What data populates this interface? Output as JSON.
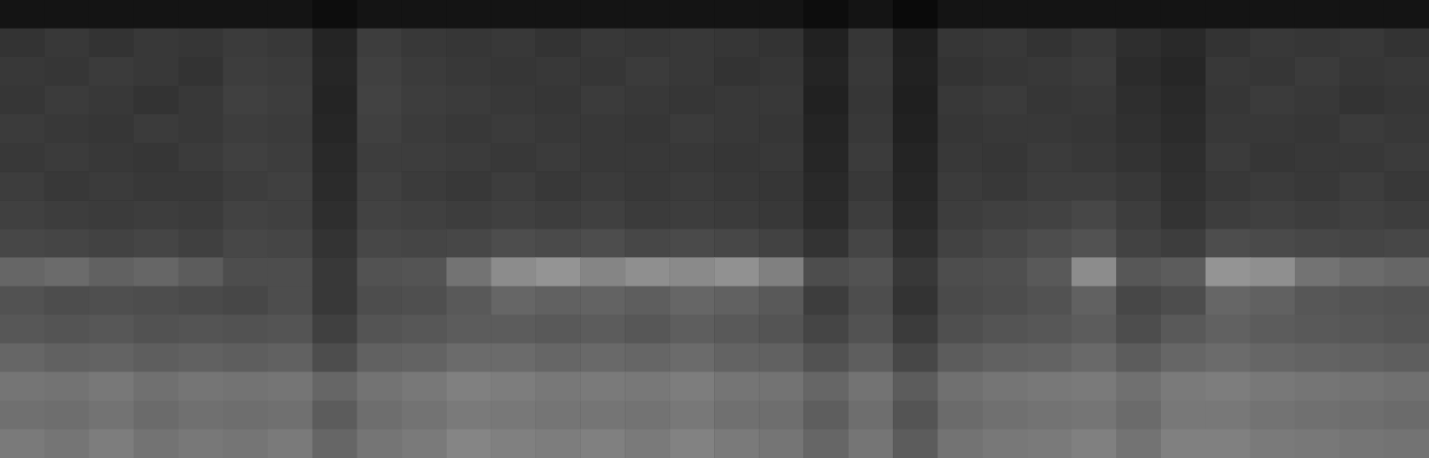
{
  "chart_data": {
    "type": "heatmap",
    "tick_labels": false,
    "grid": false,
    "color_range": [
      0,
      100
    ],
    "cells": [
      [
        8,
        8,
        8,
        8,
        8,
        8,
        8,
        5,
        8,
        8,
        8,
        8,
        8,
        8,
        8,
        8,
        8,
        8,
        5,
        8,
        4,
        8,
        8,
        8,
        8,
        8,
        8,
        8,
        8,
        8,
        8,
        8
      ],
      [
        20,
        22,
        20,
        22,
        21,
        23,
        22,
        14,
        24,
        22,
        21,
        22,
        20,
        22,
        21,
        22,
        21,
        20,
        13,
        21,
        12,
        21,
        22,
        20,
        22,
        18,
        16,
        20,
        22,
        21,
        22,
        20
      ],
      [
        22,
        21,
        23,
        22,
        20,
        24,
        23,
        15,
        25,
        23,
        22,
        21,
        22,
        21,
        23,
        22,
        20,
        21,
        14,
        22,
        13,
        20,
        21,
        22,
        23,
        17,
        15,
        22,
        21,
        23,
        21,
        22
      ],
      [
        21,
        23,
        22,
        20,
        22,
        25,
        24,
        14,
        26,
        24,
        23,
        22,
        21,
        23,
        22,
        21,
        22,
        22,
        13,
        21,
        12,
        22,
        23,
        21,
        22,
        18,
        16,
        21,
        23,
        22,
        20,
        21
      ],
      [
        23,
        22,
        21,
        23,
        22,
        24,
        23,
        15,
        25,
        23,
        22,
        23,
        22,
        22,
        21,
        23,
        22,
        21,
        14,
        22,
        13,
        21,
        22,
        22,
        21,
        19,
        17,
        22,
        22,
        21,
        23,
        22
      ],
      [
        22,
        23,
        22,
        21,
        23,
        25,
        24,
        16,
        24,
        24,
        23,
        22,
        23,
        22,
        22,
        22,
        21,
        22,
        15,
        23,
        14,
        22,
        21,
        23,
        22,
        20,
        18,
        23,
        21,
        22,
        22,
        23
      ],
      [
        24,
        22,
        23,
        22,
        22,
        24,
        25,
        17,
        25,
        23,
        22,
        24,
        22,
        23,
        22,
        23,
        22,
        21,
        16,
        22,
        15,
        23,
        22,
        24,
        24,
        22,
        19,
        22,
        23,
        22,
        24,
        22
      ],
      [
        25,
        24,
        23,
        24,
        23,
        26,
        25,
        18,
        26,
        25,
        24,
        25,
        24,
        25,
        23,
        24,
        23,
        22,
        17,
        24,
        16,
        24,
        25,
        26,
        28,
        24,
        20,
        24,
        25,
        24,
        25,
        24
      ],
      [
        28,
        27,
        26,
        27,
        25,
        28,
        27,
        20,
        28,
        27,
        28,
        30,
        29,
        30,
        28,
        29,
        28,
        26,
        20,
        27,
        18,
        26,
        28,
        30,
        32,
        26,
        24,
        30,
        29,
        28,
        27,
        28
      ],
      [
        40,
        42,
        38,
        40,
        36,
        30,
        30,
        22,
        32,
        33,
        45,
        55,
        58,
        52,
        56,
        54,
        57,
        50,
        30,
        32,
        22,
        30,
        31,
        35,
        55,
        34,
        36,
        58,
        56,
        45,
        42,
        40
      ],
      [
        32,
        30,
        31,
        30,
        29,
        28,
        30,
        22,
        30,
        31,
        35,
        40,
        38,
        39,
        37,
        40,
        38,
        35,
        24,
        30,
        20,
        29,
        30,
        32,
        38,
        28,
        30,
        40,
        38,
        34,
        33,
        32
      ],
      [
        34,
        33,
        34,
        32,
        33,
        32,
        33,
        25,
        33,
        34,
        36,
        36,
        35,
        36,
        34,
        37,
        35,
        33,
        27,
        32,
        23,
        31,
        33,
        34,
        36,
        30,
        35,
        38,
        36,
        35,
        34,
        33
      ],
      [
        40,
        38,
        39,
        37,
        38,
        37,
        38,
        30,
        38,
        39,
        42,
        42,
        40,
        41,
        40,
        42,
        39,
        38,
        32,
        37,
        28,
        36,
        38,
        39,
        41,
        36,
        40,
        42,
        40,
        39,
        38,
        37
      ],
      [
        46,
        45,
        47,
        44,
        46,
        45,
        46,
        40,
        45,
        47,
        50,
        49,
        47,
        48,
        47,
        49,
        46,
        45,
        40,
        45,
        36,
        44,
        46,
        47,
        48,
        44,
        48,
        49,
        47,
        46,
        45,
        44
      ],
      [
        44,
        43,
        45,
        42,
        44,
        43,
        44,
        36,
        43,
        45,
        48,
        47,
        46,
        46,
        45,
        47,
        44,
        43,
        37,
        43,
        33,
        42,
        44,
        45,
        46,
        42,
        47,
        47,
        45,
        44,
        43,
        42
      ],
      [
        48,
        46,
        49,
        45,
        47,
        46,
        48,
        40,
        46,
        48,
        52,
        50,
        49,
        50,
        48,
        51,
        48,
        46,
        40,
        46,
        36,
        45,
        47,
        48,
        50,
        45,
        50,
        50,
        48,
        47,
        46,
        45
      ]
    ]
  }
}
